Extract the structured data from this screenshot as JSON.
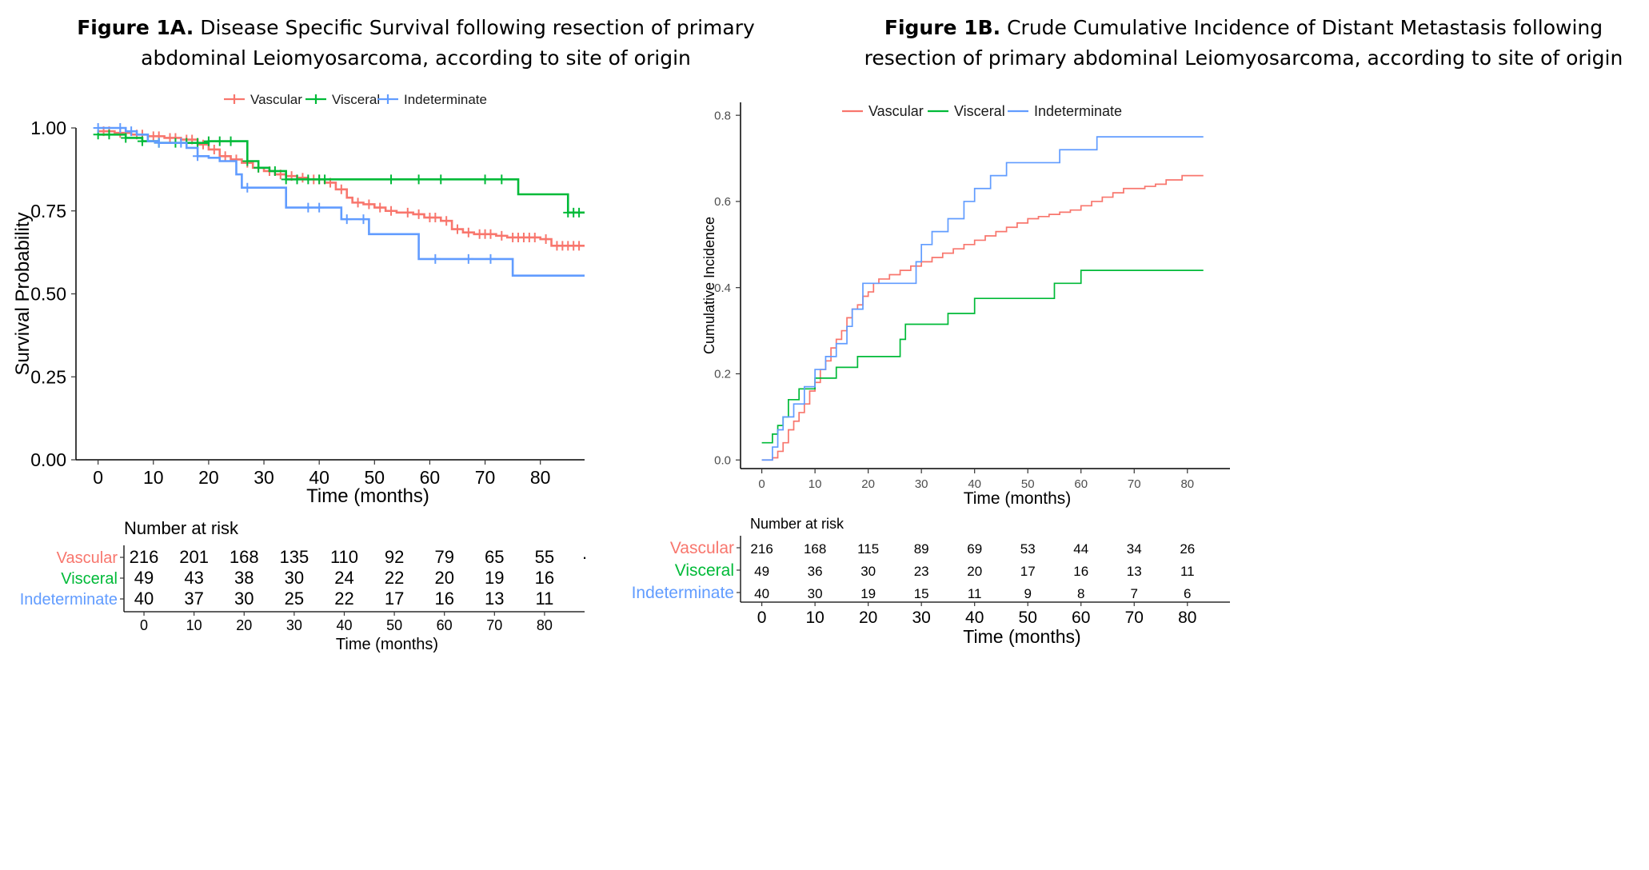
{
  "figures": {
    "a": {
      "title_label": "Figure 1A.",
      "title_line1": " Disease Specific Survival following resection of primary",
      "title_line2": "abdominal Leiomyosarcoma, according to site of origin"
    },
    "b": {
      "title_label": "Figure 1B.",
      "title_line1": " Crude Cumulative Incidence of Distant Metastasis following",
      "title_line2": "resection of primary abdominal Leiomyosarcoma, according to site of origin"
    }
  },
  "colors": {
    "vascular": "#f8766d",
    "visceral": "#00ba38",
    "indeterminate": "#619cff"
  },
  "chart_data": [
    {
      "type": "line",
      "step": true,
      "xlabel": "Time (months)",
      "ylabel": "Survival Probability",
      "xlim": [
        -4,
        88
      ],
      "ylim": [
        0,
        1
      ],
      "x_ticks": [
        0,
        10,
        20,
        30,
        40,
        50,
        60,
        70,
        80
      ],
      "y_ticks": [
        0.0,
        0.25,
        0.5,
        0.75,
        1.0
      ],
      "y_tick_labels": [
        "0.00",
        "0.25",
        "0.50",
        "0.75",
        "1.00"
      ],
      "legend_position": "top",
      "series": [
        {
          "name": "Vascular",
          "points": [
            [
              0,
              0.99
            ],
            [
              3,
              0.985
            ],
            [
              6,
              0.98
            ],
            [
              9,
              0.975
            ],
            [
              12,
              0.97
            ],
            [
              15,
              0.965
            ],
            [
              18,
              0.95
            ],
            [
              20,
              0.935
            ],
            [
              22,
              0.915
            ],
            [
              24,
              0.905
            ],
            [
              26,
              0.895
            ],
            [
              28,
              0.88
            ],
            [
              30,
              0.87
            ],
            [
              32,
              0.86
            ],
            [
              34,
              0.855
            ],
            [
              36,
              0.85
            ],
            [
              38,
              0.845
            ],
            [
              41,
              0.835
            ],
            [
              43,
              0.815
            ],
            [
              45,
              0.79
            ],
            [
              46,
              0.775
            ],
            [
              48,
              0.77
            ],
            [
              50,
              0.76
            ],
            [
              52,
              0.75
            ],
            [
              54,
              0.745
            ],
            [
              57,
              0.74
            ],
            [
              59,
              0.73
            ],
            [
              62,
              0.72
            ],
            [
              64,
              0.695
            ],
            [
              66,
              0.685
            ],
            [
              68,
              0.68
            ],
            [
              72,
              0.675
            ],
            [
              74,
              0.67
            ],
            [
              80,
              0.665
            ],
            [
              82,
              0.645
            ],
            [
              88,
              0.645
            ]
          ],
          "censor_x": [
            1,
            2,
            4,
            5,
            7,
            8,
            10,
            11,
            13,
            14,
            16,
            17,
            19,
            21,
            23,
            25,
            27,
            29,
            31,
            33,
            35,
            37,
            39,
            40,
            42,
            44,
            47,
            49,
            51,
            53,
            56,
            58,
            60,
            61,
            63,
            65,
            67,
            69,
            70,
            71,
            73,
            75,
            76,
            77,
            78,
            79,
            81,
            83,
            84,
            85,
            86,
            87
          ]
        },
        {
          "name": "Visceral",
          "points": [
            [
              0,
              0.98
            ],
            [
              2,
              0.98
            ],
            [
              5,
              0.97
            ],
            [
              8,
              0.96
            ],
            [
              11,
              0.955
            ],
            [
              14,
              0.955
            ],
            [
              20,
              0.96
            ],
            [
              26,
              0.96
            ],
            [
              27,
              0.9
            ],
            [
              29,
              0.88
            ],
            [
              31,
              0.87
            ],
            [
              34,
              0.845
            ],
            [
              37,
              0.845
            ],
            [
              40,
              0.845
            ],
            [
              76,
              0.845
            ],
            [
              76,
              0.8
            ],
            [
              85,
              0.8
            ],
            [
              85,
              0.745
            ],
            [
              88,
              0.745
            ]
          ],
          "censor_x": [
            0,
            2,
            5,
            8,
            11,
            14,
            16,
            18,
            20,
            22,
            24,
            27,
            29,
            32,
            34,
            36,
            38,
            40,
            41,
            53,
            58,
            62,
            70,
            73,
            85,
            86,
            87
          ]
        },
        {
          "name": "Indeterminate",
          "points": [
            [
              0,
              1.0
            ],
            [
              4,
              1.0
            ],
            [
              5,
              0.99
            ],
            [
              7,
              0.98
            ],
            [
              9,
              0.96
            ],
            [
              11,
              0.955
            ],
            [
              16,
              0.94
            ],
            [
              18,
              0.915
            ],
            [
              20,
              0.91
            ],
            [
              22,
              0.9
            ],
            [
              25,
              0.86
            ],
            [
              26,
              0.82
            ],
            [
              33,
              0.82
            ],
            [
              34,
              0.76
            ],
            [
              44,
              0.76
            ],
            [
              44,
              0.725
            ],
            [
              49,
              0.725
            ],
            [
              49,
              0.68
            ],
            [
              58,
              0.68
            ],
            [
              58,
              0.605
            ],
            [
              75,
              0.605
            ],
            [
              75,
              0.555
            ],
            [
              88,
              0.555
            ]
          ],
          "censor_x": [
            0,
            4,
            6,
            11,
            15,
            18,
            27,
            38,
            40,
            45,
            48,
            61,
            67,
            71
          ]
        }
      ],
      "risk_table": {
        "title": "Number at risk",
        "xlabel": "Time (months)",
        "times": [
          0,
          10,
          20,
          30,
          40,
          50,
          60,
          70,
          80
        ],
        "rows": [
          {
            "name": "Vascular",
            "values": [
              "216",
              "201",
              "168",
              "135",
              "110",
              "92",
              "79",
              "65",
              "55"
            ]
          },
          {
            "name": "Visceral",
            "values": [
              "49",
              "43",
              "38",
              "30",
              "24",
              "22",
              "20",
              "19",
              "16"
            ]
          },
          {
            "name": "Indeterminate",
            "values": [
              "40",
              "37",
              "30",
              "25",
              "22",
              "17",
              "16",
              "13",
              "11"
            ]
          }
        ],
        "overflow_mark": "·"
      }
    },
    {
      "type": "line",
      "step": true,
      "xlabel": "Time (months)",
      "ylabel": "Cumulative Incidence",
      "xlim": [
        -4,
        88
      ],
      "ylim": [
        -0.02,
        0.83
      ],
      "x_ticks": [
        0,
        10,
        20,
        30,
        40,
        50,
        60,
        70,
        80
      ],
      "y_ticks": [
        0.0,
        0.2,
        0.4,
        0.6,
        0.8
      ],
      "y_tick_labels": [
        "0.0",
        "0.2",
        "0.4",
        "0.6",
        "0.8"
      ],
      "legend_position": "top",
      "series": [
        {
          "name": "Vascular",
          "points": [
            [
              0,
              0
            ],
            [
              2,
              0.005
            ],
            [
              3,
              0.02
            ],
            [
              4,
              0.04
            ],
            [
              5,
              0.07
            ],
            [
              6,
              0.09
            ],
            [
              7,
              0.11
            ],
            [
              8,
              0.13
            ],
            [
              9,
              0.16
            ],
            [
              10,
              0.18
            ],
            [
              11,
              0.21
            ],
            [
              12,
              0.23
            ],
            [
              13,
              0.26
            ],
            [
              14,
              0.28
            ],
            [
              15,
              0.3
            ],
            [
              16,
              0.33
            ],
            [
              17,
              0.35
            ],
            [
              18,
              0.36
            ],
            [
              19,
              0.38
            ],
            [
              20,
              0.39
            ],
            [
              21,
              0.41
            ],
            [
              22,
              0.42
            ],
            [
              24,
              0.43
            ],
            [
              26,
              0.44
            ],
            [
              28,
              0.45
            ],
            [
              30,
              0.46
            ],
            [
              32,
              0.47
            ],
            [
              34,
              0.48
            ],
            [
              36,
              0.49
            ],
            [
              38,
              0.5
            ],
            [
              40,
              0.51
            ],
            [
              42,
              0.52
            ],
            [
              44,
              0.53
            ],
            [
              46,
              0.54
            ],
            [
              48,
              0.55
            ],
            [
              50,
              0.56
            ],
            [
              52,
              0.565
            ],
            [
              54,
              0.57
            ],
            [
              56,
              0.575
            ],
            [
              58,
              0.58
            ],
            [
              60,
              0.59
            ],
            [
              62,
              0.6
            ],
            [
              64,
              0.61
            ],
            [
              66,
              0.62
            ],
            [
              68,
              0.63
            ],
            [
              72,
              0.635
            ],
            [
              74,
              0.64
            ],
            [
              76,
              0.65
            ],
            [
              79,
              0.66
            ],
            [
              83,
              0.66
            ]
          ],
          "censor_x": []
        },
        {
          "name": "Visceral",
          "points": [
            [
              0,
              0.04
            ],
            [
              2,
              0.04
            ],
            [
              2,
              0.06
            ],
            [
              3,
              0.06
            ],
            [
              3,
              0.08
            ],
            [
              4,
              0.08
            ],
            [
              4,
              0.1
            ],
            [
              5,
              0.1
            ],
            [
              5,
              0.14
            ],
            [
              7,
              0.14
            ],
            [
              7,
              0.165
            ],
            [
              10,
              0.165
            ],
            [
              10,
              0.19
            ],
            [
              14,
              0.19
            ],
            [
              14,
              0.215
            ],
            [
              18,
              0.215
            ],
            [
              18,
              0.24
            ],
            [
              26,
              0.24
            ],
            [
              26,
              0.28
            ],
            [
              27,
              0.28
            ],
            [
              27,
              0.315
            ],
            [
              35,
              0.315
            ],
            [
              35,
              0.34
            ],
            [
              40,
              0.34
            ],
            [
              40,
              0.375
            ],
            [
              55,
              0.375
            ],
            [
              55,
              0.41
            ],
            [
              60,
              0.41
            ],
            [
              60,
              0.44
            ],
            [
              83,
              0.44
            ]
          ],
          "censor_x": []
        },
        {
          "name": "Indeterminate",
          "points": [
            [
              0,
              0
            ],
            [
              2,
              0
            ],
            [
              2,
              0.03
            ],
            [
              3,
              0.03
            ],
            [
              3,
              0.07
            ],
            [
              4,
              0.07
            ],
            [
              4,
              0.1
            ],
            [
              6,
              0.1
            ],
            [
              6,
              0.13
            ],
            [
              8,
              0.13
            ],
            [
              8,
              0.17
            ],
            [
              10,
              0.17
            ],
            [
              10,
              0.21
            ],
            [
              12,
              0.21
            ],
            [
              12,
              0.24
            ],
            [
              14,
              0.24
            ],
            [
              14,
              0.27
            ],
            [
              16,
              0.27
            ],
            [
              16,
              0.31
            ],
            [
              17,
              0.31
            ],
            [
              17,
              0.35
            ],
            [
              19,
              0.35
            ],
            [
              19,
              0.41
            ],
            [
              29,
              0.41
            ],
            [
              29,
              0.46
            ],
            [
              30,
              0.46
            ],
            [
              30,
              0.5
            ],
            [
              32,
              0.5
            ],
            [
              32,
              0.53
            ],
            [
              35,
              0.53
            ],
            [
              35,
              0.56
            ],
            [
              38,
              0.56
            ],
            [
              38,
              0.6
            ],
            [
              40,
              0.6
            ],
            [
              40,
              0.63
            ],
            [
              43,
              0.63
            ],
            [
              43,
              0.66
            ],
            [
              46,
              0.66
            ],
            [
              46,
              0.69
            ],
            [
              56,
              0.69
            ],
            [
              56,
              0.72
            ],
            [
              63,
              0.72
            ],
            [
              63,
              0.75
            ],
            [
              83,
              0.75
            ]
          ],
          "censor_x": []
        }
      ],
      "risk_table": {
        "title": "Number at risk",
        "xlabel": "Time (months)",
        "times": [
          0,
          10,
          20,
          30,
          40,
          50,
          60,
          70,
          80
        ],
        "rows": [
          {
            "name": "Vascular",
            "values": [
              "216",
              "168",
              "115",
              "89",
              "69",
              "53",
              "44",
              "34",
              "26"
            ]
          },
          {
            "name": "Visceral",
            "values": [
              "49",
              "36",
              "30",
              "23",
              "20",
              "17",
              "16",
              "13",
              "11"
            ]
          },
          {
            "name": "Indeterminate",
            "values": [
              "40",
              "30",
              "19",
              "15",
              "11",
              "9",
              "8",
              "7",
              "6"
            ]
          }
        ],
        "overflow_mark": ""
      }
    }
  ]
}
